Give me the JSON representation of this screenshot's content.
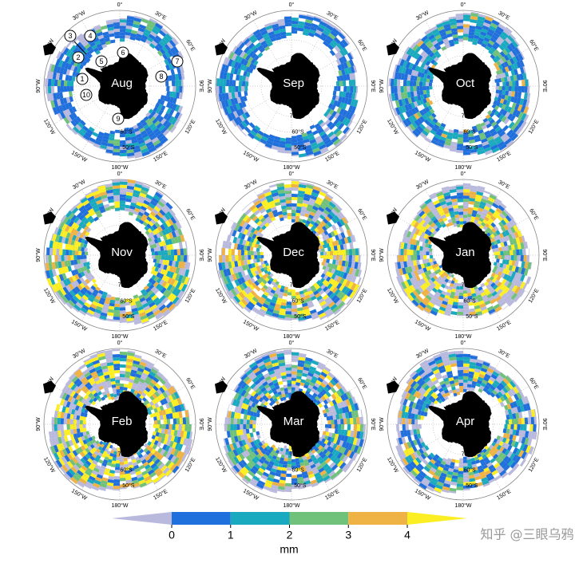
{
  "panels": [
    {
      "label": "Aug"
    },
    {
      "label": "Sep"
    },
    {
      "label": "Oct"
    },
    {
      "label": "Nov"
    },
    {
      "label": "Dec"
    },
    {
      "label": "Jan"
    },
    {
      "label": "Feb"
    },
    {
      "label": "Mar"
    },
    {
      "label": "Apr"
    }
  ],
  "lon_labels": [
    "0°",
    "30°E",
    "60°E",
    "90°E",
    "120°E",
    "150°E",
    "180°W",
    "150°W",
    "120°W",
    "90°W",
    "60°W",
    "30°W"
  ],
  "lat_labels": [
    "70°S",
    "60°S",
    "50°S"
  ],
  "regions": [
    "1",
    "2",
    "3",
    "4",
    "5",
    "6",
    "7",
    "8",
    "9",
    "10"
  ],
  "colorbar": {
    "ticks": [
      0,
      1,
      2,
      3,
      4
    ],
    "lim": [
      0,
      4
    ],
    "unit": "mm",
    "colors": [
      "#b9b9dd",
      "#1f6fdc",
      "#19aabf",
      "#70c27a",
      "#efb244",
      "#fbee22"
    ]
  },
  "watermark": "知乎 @三眼乌鸦"
}
